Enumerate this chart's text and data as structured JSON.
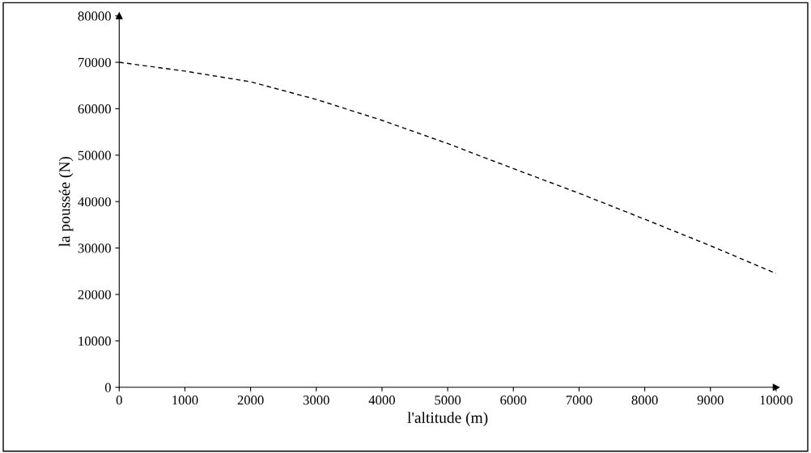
{
  "chart_data": {
    "type": "line",
    "xlabel": "l'altitude (m)",
    "ylabel": "la poussée (N)",
    "x": [
      0,
      1000,
      2000,
      3000,
      4000,
      5000,
      6000,
      7000,
      8000,
      9000,
      10000
    ],
    "series": [
      {
        "color": "#000000",
        "values": [
          70000,
          68100,
          65800,
          62000,
          57500,
          52500,
          47100,
          41800,
          36200,
          30500,
          24500
        ]
      }
    ],
    "xlim": [
      0,
      10000
    ],
    "xticks": [
      0,
      1000,
      2000,
      3000,
      4000,
      5000,
      6000,
      7000,
      8000,
      9000,
      10000
    ],
    "ylim": [
      0,
      80000
    ],
    "yticks": [
      0,
      10000,
      20000,
      30000,
      40000,
      50000,
      60000,
      70000,
      80000
    ],
    "grid": false,
    "legend": false,
    "marker": "none",
    "line_style": "dashed"
  }
}
